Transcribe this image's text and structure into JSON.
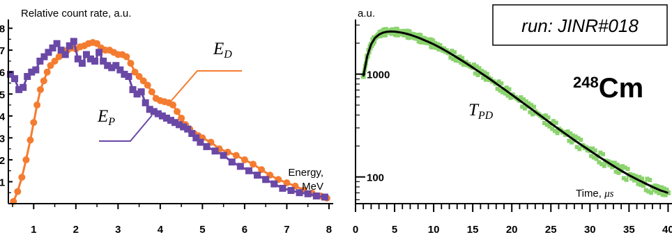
{
  "chart_data": [
    {
      "type": "scatter",
      "title": "",
      "ylabel": "Relative count rate, a.u.",
      "xlabel_lines": [
        "Energy,",
        "MeV"
      ],
      "xlim": [
        0.4,
        8.1
      ],
      "ylim": [
        0,
        8.4
      ],
      "xticks": [
        "1",
        "2",
        "3",
        "4",
        "5",
        "6",
        "7",
        "8"
      ],
      "yticks": [
        "1",
        "2",
        "3",
        "4",
        "5",
        "6",
        "7",
        "8"
      ],
      "grid": false,
      "series": [
        {
          "name": "E_D",
          "label_main": "E",
          "label_sub": "D",
          "marker": "circle",
          "color": "#f47c30",
          "x": [
            0.52,
            0.62,
            0.72,
            0.82,
            0.92,
            1.0,
            1.08,
            1.16,
            1.24,
            1.32,
            1.4,
            1.5,
            1.6,
            1.7,
            1.8,
            1.9,
            2.0,
            2.1,
            2.2,
            2.3,
            2.4,
            2.5,
            2.6,
            2.7,
            2.8,
            2.9,
            3.0,
            3.1,
            3.2,
            3.3,
            3.4,
            3.5,
            3.6,
            3.7,
            3.8,
            3.9,
            4.0,
            4.1,
            4.2,
            4.3,
            4.4,
            4.5,
            4.6,
            4.7,
            4.8,
            4.9,
            5.0,
            5.2,
            5.4,
            5.6,
            5.8,
            6.0,
            6.2,
            6.4,
            6.6,
            6.8,
            7.0,
            7.2,
            7.4,
            7.6,
            7.8,
            7.95
          ],
          "y": [
            0.1,
            0.55,
            1.2,
            2.0,
            2.9,
            3.7,
            4.5,
            5.2,
            5.6,
            6.0,
            6.3,
            6.5,
            6.7,
            6.9,
            7.0,
            7.1,
            7.05,
            7.15,
            7.2,
            7.3,
            7.35,
            7.3,
            7.1,
            7.0,
            7.0,
            6.9,
            6.8,
            6.8,
            6.7,
            6.4,
            6.0,
            5.8,
            5.6,
            5.4,
            5.1,
            4.8,
            4.7,
            4.65,
            4.6,
            4.5,
            4.2,
            3.9,
            3.6,
            3.4,
            3.2,
            3.1,
            3.0,
            2.8,
            2.5,
            2.35,
            2.2,
            2.0,
            1.8,
            1.55,
            1.3,
            1.1,
            0.95,
            0.8,
            0.62,
            0.48,
            0.35,
            0.25
          ]
        },
        {
          "name": "E_P",
          "label_main": "E",
          "label_sub": "P",
          "marker": "square",
          "color": "#6a48a6",
          "x": [
            0.45,
            0.55,
            0.65,
            0.75,
            0.85,
            0.95,
            1.05,
            1.15,
            1.25,
            1.35,
            1.45,
            1.55,
            1.65,
            1.75,
            1.85,
            1.95,
            2.05,
            2.15,
            2.25,
            2.35,
            2.45,
            2.55,
            2.65,
            2.75,
            2.85,
            2.95,
            3.05,
            3.15,
            3.25,
            3.35,
            3.45,
            3.55,
            3.65,
            3.75,
            3.85,
            3.95,
            4.05,
            4.15,
            4.25,
            4.35,
            4.45,
            4.55,
            4.65,
            4.75,
            4.85,
            4.95,
            5.1,
            5.3,
            5.5,
            5.7,
            5.9,
            6.1,
            6.3,
            6.5,
            6.7,
            6.9,
            7.1,
            7.3,
            7.5,
            7.7,
            7.9
          ],
          "y": [
            5.9,
            5.7,
            5.2,
            5.3,
            5.8,
            6.0,
            6.1,
            6.5,
            6.7,
            6.9,
            7.1,
            7.3,
            7.0,
            6.8,
            7.2,
            7.4,
            6.6,
            6.4,
            6.8,
            6.6,
            6.5,
            6.9,
            6.5,
            6.3,
            6.2,
            6.3,
            6.1,
            5.9,
            5.8,
            5.2,
            5.0,
            5.1,
            4.6,
            4.3,
            4.2,
            4.1,
            4.0,
            3.9,
            3.8,
            3.7,
            3.6,
            3.5,
            3.4,
            3.2,
            3.0,
            2.8,
            2.6,
            2.4,
            2.2,
            1.9,
            1.7,
            1.5,
            1.3,
            1.1,
            0.9,
            0.7,
            0.6,
            0.5,
            0.45,
            0.35,
            0.3
          ]
        }
      ]
    },
    {
      "type": "scatter",
      "title": "",
      "ylabel": "a.u.",
      "xlabel_prefix": "Time, ",
      "xlabel_unit": "μs",
      "xlim": [
        0,
        40.5
      ],
      "yscale": "log",
      "ylim": [
        55,
        3400
      ],
      "xticks": [
        "0",
        "5",
        "10",
        "15",
        "20",
        "25",
        "30",
        "35",
        "40"
      ],
      "yticks": [
        "100",
        "1000"
      ],
      "grid": false,
      "series": [
        {
          "name": "data",
          "marker": "square",
          "color": "#8bd36e",
          "x": [
            1,
            1.5,
            2,
            2.5,
            3,
            3.5,
            4,
            4.5,
            5,
            5.5,
            6,
            6.5,
            7,
            7.5,
            8,
            8.5,
            9,
            9.5,
            10,
            11,
            12,
            13,
            14,
            15,
            16,
            17,
            18,
            19,
            20,
            21,
            22,
            23,
            24,
            25,
            26,
            27,
            28,
            29,
            30,
            31,
            32,
            33,
            34,
            35,
            36,
            37,
            38,
            39,
            40
          ],
          "y": [
            950,
            1500,
            1950,
            2250,
            2420,
            2530,
            2580,
            2600,
            2590,
            2560,
            2520,
            2470,
            2410,
            2340,
            2270,
            2190,
            2110,
            2030,
            1950,
            1780,
            1610,
            1450,
            1300,
            1160,
            1030,
            915,
            810,
            715,
            630,
            555,
            488,
            430,
            378,
            332,
            292,
            258,
            228,
            202,
            180,
            160,
            143,
            128,
            115,
            104,
            95,
            87,
            80,
            74,
            70
          ]
        },
        {
          "name": "T_PD",
          "label_main": "T",
          "label_sub": "PD",
          "marker": "line",
          "color": "#000000",
          "x": [
            1,
            1.5,
            2,
            2.5,
            3,
            3.5,
            4,
            4.5,
            5,
            5.5,
            6,
            6.5,
            7,
            7.5,
            8,
            8.5,
            9,
            9.5,
            10,
            11,
            12,
            13,
            14,
            15,
            16,
            17,
            18,
            19,
            20,
            21,
            22,
            23,
            24,
            25,
            26,
            27,
            28,
            29,
            30,
            31,
            32,
            33,
            34,
            35,
            36,
            37,
            38,
            39,
            40
          ],
          "y": [
            950,
            1500,
            1950,
            2250,
            2420,
            2530,
            2580,
            2600,
            2590,
            2560,
            2520,
            2470,
            2410,
            2340,
            2270,
            2190,
            2110,
            2030,
            1950,
            1780,
            1610,
            1450,
            1300,
            1160,
            1030,
            915,
            810,
            715,
            630,
            555,
            488,
            430,
            378,
            332,
            292,
            258,
            228,
            202,
            180,
            160,
            143,
            128,
            115,
            104,
            95,
            87,
            80,
            74,
            70
          ]
        }
      ]
    }
  ],
  "annotations": {
    "run_label": "run: JINR#018",
    "isotope_mass": "248",
    "isotope_symbol": "Cm"
  }
}
